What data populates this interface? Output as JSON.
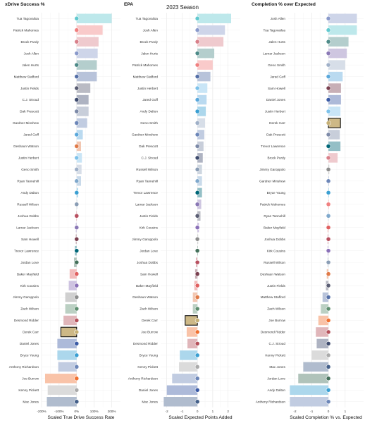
{
  "figure": {
    "subtitle": "2023 Season"
  },
  "team_colors": {
    "MIA": "#62c9cf",
    "KC": "#f08080",
    "SF": "#d9808a",
    "BUF": "#8a9acb",
    "PHI": "#4d8a88",
    "DET": "#5aa8db",
    "CHI": "#5a5d73",
    "HOU": "#3e4b6e",
    "DAL": "#7d8aa8",
    "IND": "#6c86b8",
    "LAR": "#5570a8",
    "CLE": "#e07a48",
    "LAC": "#7ec2ea",
    "SEA": "#9fb0c8",
    "TEN": "#7fa8cc",
    "CAR": "#3a9fd2",
    "DEN": "#8a9db5",
    "ARI": "#b85060",
    "BAL": "#8a78b5",
    "WAS": "#7a4050",
    "JAX": "#006778",
    "TB": "#e06060",
    "MIN": "#8a70b8",
    "LV": "#8e8e8e",
    "NYJ": "#5e8f70",
    "ATL": "#b5505a",
    "NO": "#c6b075",
    "NYG": "#3b5ba5",
    "CIN": "#f07030",
    "PIT": "#aaaaaa",
    "NE": "#44608a",
    "GB": "#44705a"
  },
  "chart_data": [
    {
      "type": "bar",
      "orientation": "horizontal",
      "title": "xDrive Success %",
      "xlabel": "Scaled True Drive Success Rate",
      "xlim": [
        -200,
        250
      ],
      "ticks": [
        -200,
        -100,
        0,
        100,
        200
      ],
      "tick_labels": [
        "-200%",
        "-100%",
        "0%",
        "100%",
        "200%"
      ],
      "highlight": "Derek Carr",
      "rows": [
        {
          "player": "Tua Tagovailoa",
          "team": "MIA",
          "value": 200
        },
        {
          "player": "Patrick Mahomes",
          "team": "KC",
          "value": 148
        },
        {
          "player": "Brock Purdy",
          "team": "SF",
          "value": 125
        },
        {
          "player": "Josh Allen",
          "team": "BUF",
          "value": 120
        },
        {
          "player": "Jalen Hurts",
          "team": "PHI",
          "value": 115
        },
        {
          "player": "Matthew Stafford",
          "team": "LAR",
          "value": 115
        },
        {
          "player": "Justin Fields",
          "team": "CHI",
          "value": 78
        },
        {
          "player": "C.J. Stroud",
          "team": "HOU",
          "value": 68
        },
        {
          "player": "Dak Prescott",
          "team": "DAL",
          "value": 68
        },
        {
          "player": "Gardner Minshew",
          "team": "IND",
          "value": 60
        },
        {
          "player": "Jared Goff",
          "team": "DET",
          "value": 35
        },
        {
          "player": "Deshaun Watson",
          "team": "CLE",
          "value": 25
        },
        {
          "player": "Justin Herbert",
          "team": "LAC",
          "value": 30
        },
        {
          "player": "Geno Smith",
          "team": "SEA",
          "value": 28
        },
        {
          "player": "Ryan Tannehill",
          "team": "TEN",
          "value": 25
        },
        {
          "player": "Andy Dalton",
          "team": "CAR",
          "value": 8
        },
        {
          "player": "Russell Wilson",
          "team": "DEN",
          "value": 3
        },
        {
          "player": "Joshua Dobbs",
          "team": "ARI",
          "value": -2
        },
        {
          "player": "Lamar Jackson",
          "team": "BAL",
          "value": -5
        },
        {
          "player": "Sam Howell",
          "team": "WAS",
          "value": -5
        },
        {
          "player": "Trevor Lawrence",
          "team": "JAX",
          "value": -10
        },
        {
          "player": "Jordan Love",
          "team": "GB",
          "value": -15
        },
        {
          "player": "Baker Mayfield",
          "team": "TB",
          "value": -40
        },
        {
          "player": "Kirk Cousins",
          "team": "MIN",
          "value": -45
        },
        {
          "player": "Jimmy Garoppolo",
          "team": "LV",
          "value": -65
        },
        {
          "player": "Zach Wilson",
          "team": "NYJ",
          "value": -65
        },
        {
          "player": "Desmond Ridder",
          "team": "ATL",
          "value": -75
        },
        {
          "player": "Derek Carr",
          "team": "NO",
          "value": -90
        },
        {
          "player": "Daniel Jones",
          "team": "NYG",
          "value": -110
        },
        {
          "player": "Bryce Young",
          "team": "CAR",
          "value": -110
        },
        {
          "player": "Anthony Richardson",
          "team": "IND",
          "value": -105
        },
        {
          "player": "Joe Burrow",
          "team": "CIN",
          "value": -180
        },
        {
          "player": "Kenny Pickett",
          "team": "PIT",
          "value": -165
        },
        {
          "player": "Mac Jones",
          "team": "NE",
          "value": -170
        }
      ]
    },
    {
      "type": "bar",
      "orientation": "horizontal",
      "title": "EPA",
      "xlabel": "Scaled Expected Points Added",
      "xlim": [
        -2.4,
        2.8
      ],
      "ticks": [
        -2,
        -1,
        0,
        1,
        2
      ],
      "tick_labels": [
        "-2",
        "-1",
        "0",
        "1",
        "2"
      ],
      "highlight": "Derek Carr",
      "rows": [
        {
          "player": "Tua Tagovailoa",
          "team": "MIA",
          "value": 2.2
        },
        {
          "player": "Josh Allen",
          "team": "BUF",
          "value": 1.8
        },
        {
          "player": "Brock Purdy",
          "team": "SF",
          "value": 1.7
        },
        {
          "player": "Jalen Hurts",
          "team": "PHI",
          "value": 1.1
        },
        {
          "player": "Patrick Mahomes",
          "team": "KC",
          "value": 1.0
        },
        {
          "player": "Matthew Stafford",
          "team": "LAR",
          "value": 0.85
        },
        {
          "player": "Justin Herbert",
          "team": "LAC",
          "value": 0.65
        },
        {
          "player": "Jared Goff",
          "team": "DET",
          "value": 0.6
        },
        {
          "player": "Andy Dalton",
          "team": "CAR",
          "value": 0.55
        },
        {
          "player": "Geno Smith",
          "team": "SEA",
          "value": 0.5
        },
        {
          "player": "Gardner Minshew",
          "team": "IND",
          "value": 0.45
        },
        {
          "player": "Dak Prescott",
          "team": "DAL",
          "value": 0.4
        },
        {
          "player": "C.J. Stroud",
          "team": "HOU",
          "value": 0.35
        },
        {
          "player": "Russell Wilson",
          "team": "DEN",
          "value": 0.3
        },
        {
          "player": "Ryan Tannehill",
          "team": "TEN",
          "value": 0.3
        },
        {
          "player": "Trevor Lawrence",
          "team": "JAX",
          "value": 0.3
        },
        {
          "player": "Lamar Jackson",
          "team": "BAL",
          "value": 0.25
        },
        {
          "player": "Justin Fields",
          "team": "CHI",
          "value": 0.2
        },
        {
          "player": "Kirk Cousins",
          "team": "MIN",
          "value": 0.1
        },
        {
          "player": "Jimmy Garoppolo",
          "team": "LV",
          "value": 0.05
        },
        {
          "player": "Jordan Love",
          "team": "GB",
          "value": 0.0
        },
        {
          "player": "Joshua Dobbs",
          "team": "ARI",
          "value": -0.1
        },
        {
          "player": "Sam Howell",
          "team": "WAS",
          "value": -0.15
        },
        {
          "player": "Baker Mayfield",
          "team": "TB",
          "value": -0.2
        },
        {
          "player": "Deshaun Watson",
          "team": "CLE",
          "value": -0.3
        },
        {
          "player": "Zach Wilson",
          "team": "NYJ",
          "value": -0.3
        },
        {
          "player": "Derek Carr",
          "team": "NO",
          "value": -0.8
        },
        {
          "player": "Joe Burrow",
          "team": "CIN",
          "value": -0.7
        },
        {
          "player": "Desmond Ridder",
          "team": "ATL",
          "value": -0.65
        },
        {
          "player": "Bryce Young",
          "team": "CAR",
          "value": -1.15
        },
        {
          "player": "Kenny Pickett",
          "team": "PIT",
          "value": -1.2
        },
        {
          "player": "Anthony Richardson",
          "team": "IND",
          "value": -1.65
        },
        {
          "player": "Daniel Jones",
          "team": "NYG",
          "value": -2.0
        },
        {
          "player": "Mac Jones",
          "team": "NE",
          "value": -2.2
        }
      ]
    },
    {
      "type": "bar",
      "orientation": "horizontal",
      "title": "Completion % over Expected",
      "xlabel": "Scaled Completion % vs. Expected",
      "xlim": [
        -2.4,
        2.1
      ],
      "ticks": [
        -2,
        -1,
        0,
        1
      ],
      "tick_labels": [
        "-2",
        "-1",
        "0",
        "1"
      ],
      "highlight": "Derek Carr",
      "rows": [
        {
          "player": "Josh Allen",
          "team": "BUF",
          "value": 1.7
        },
        {
          "player": "Tua Tagovailoa",
          "team": "MIA",
          "value": 1.7
        },
        {
          "player": "Jalen Hurts",
          "team": "PHI",
          "value": 1.2
        },
        {
          "player": "Lamar Jackson",
          "team": "BAL",
          "value": 1.1
        },
        {
          "player": "Geno Smith",
          "team": "SEA",
          "value": 1.0
        },
        {
          "player": "Jared Goff",
          "team": "DET",
          "value": 0.85
        },
        {
          "player": "Sam Howell",
          "team": "WAS",
          "value": 0.75
        },
        {
          "player": "Daniel Jones",
          "team": "NYG",
          "value": 0.75
        },
        {
          "player": "Justin Herbert",
          "team": "LAC",
          "value": 0.72
        },
        {
          "player": "Derek Carr",
          "team": "NO",
          "value": 0.72
        },
        {
          "player": "Dak Prescott",
          "team": "DAL",
          "value": 0.68
        },
        {
          "player": "Trevor Lawrence",
          "team": "JAX",
          "value": 0.72
        },
        {
          "player": "Brock Purdy",
          "team": "SF",
          "value": 0.55
        },
        {
          "player": "Jimmy Garoppolo",
          "team": "LV",
          "value": 0.05
        },
        {
          "player": "Gardner Minshew",
          "team": "IND",
          "value": 0.02
        },
        {
          "player": "Bryce Young",
          "team": "CAR",
          "value": 0.0
        },
        {
          "player": "Patrick Mahomes",
          "team": "KC",
          "value": 0.0
        },
        {
          "player": "Ryan Tannehill",
          "team": "TEN",
          "value": -0.02
        },
        {
          "player": "Baker Mayfield",
          "team": "TB",
          "value": -0.05
        },
        {
          "player": "Joshua Dobbs",
          "team": "ARI",
          "value": -0.05
        },
        {
          "player": "Kirk Cousins",
          "team": "MIN",
          "value": -0.05
        },
        {
          "player": "Russell Wilson",
          "team": "DEN",
          "value": -0.05
        },
        {
          "player": "Deshaun Watson",
          "team": "CLE",
          "value": -0.1
        },
        {
          "player": "Justin Fields",
          "team": "CHI",
          "value": -0.15
        },
        {
          "player": "Matthew Stafford",
          "team": "LAR",
          "value": -0.35
        },
        {
          "player": "Zach Wilson",
          "team": "NYJ",
          "value": -0.45
        },
        {
          "player": "Joe Burrow",
          "team": "CIN",
          "value": -0.6
        },
        {
          "player": "Desmond Ridder",
          "team": "ATL",
          "value": -0.75
        },
        {
          "player": "C.J. Stroud",
          "team": "HOU",
          "value": -0.7
        },
        {
          "player": "Kenny Pickett",
          "team": "PIT",
          "value": -1.0
        },
        {
          "player": "Mac Jones",
          "team": "NE",
          "value": -1.5
        },
        {
          "player": "Jordan Love",
          "team": "GB",
          "value": -1.8
        },
        {
          "player": "Andy Dalton",
          "team": "CAR",
          "value": -2.3
        },
        {
          "player": "Anthony Richardson",
          "team": "IND",
          "value": -2.3
        }
      ]
    }
  ]
}
